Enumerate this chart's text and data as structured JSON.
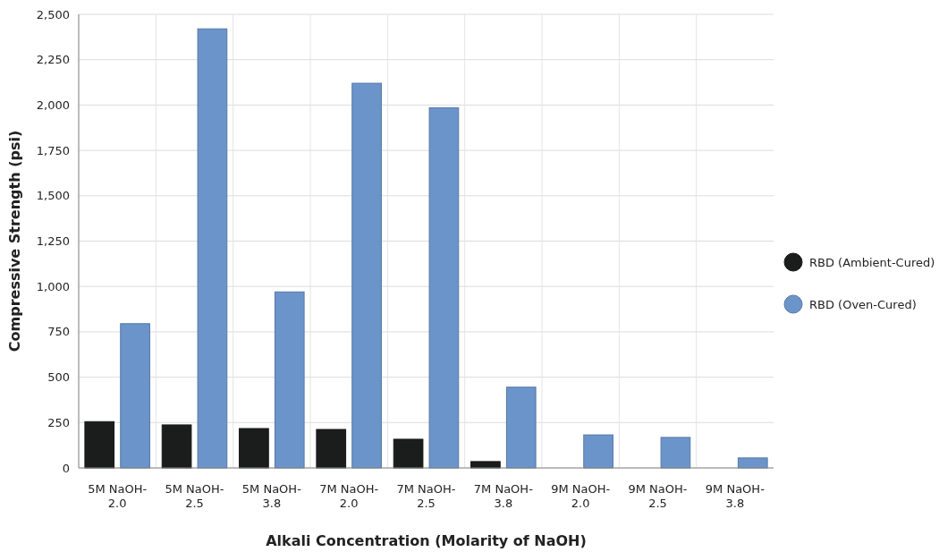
{
  "chart_data": {
    "type": "bar",
    "xlabel": "Alkali Concentration (Molarity of NaOH)",
    "ylabel": "Compressive Strength (psi)",
    "categories": [
      "5M NaOH-2.0",
      "5M NaOH-2.5",
      "5M NaOH-3.8",
      "7M NaOH-2.0",
      "7M NaOH-2.5",
      "7M NaOH-3.8",
      "9M NaOH-2.0",
      "9M NaOH-2.5",
      "9M NaOH-3.8"
    ],
    "series": [
      {
        "name": "RBD (Ambient-Cured)",
        "color": "#1b1d1c",
        "values": [
          255,
          237,
          217,
          212,
          158,
          35,
          0,
          0,
          0
        ]
      },
      {
        "name": "RBD (Oven-Cured)",
        "color": "#6b94cb",
        "values": [
          795,
          2420,
          970,
          2120,
          1985,
          445,
          182,
          168,
          55
        ]
      }
    ],
    "ylim": [
      0,
      2500
    ],
    "yticks": [
      {
        "value": 0,
        "label": "0"
      },
      {
        "value": 250,
        "label": "250"
      },
      {
        "value": 500,
        "label": "500"
      },
      {
        "value": 750,
        "label": "750"
      },
      {
        "value": 1000,
        "label": "1,000"
      },
      {
        "value": 1250,
        "label": "1,250"
      },
      {
        "value": 1500,
        "label": "1,500"
      },
      {
        "value": 1750,
        "label": "1,750"
      },
      {
        "value": 2000,
        "label": "2,000"
      },
      {
        "value": 2250,
        "label": "2,250"
      },
      {
        "value": 2500,
        "label": "2,500"
      }
    ],
    "grid": "y",
    "legend": "right"
  }
}
